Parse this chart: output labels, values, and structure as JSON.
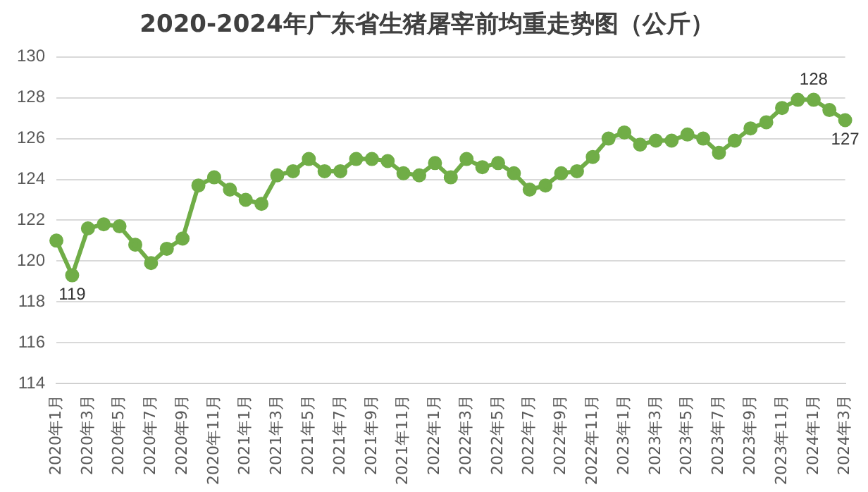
{
  "chart_data": {
    "type": "line",
    "title": "2020-2024年广东省生猪屠宰前均重走势图（公斤）",
    "categories": [
      "2020年1月",
      null,
      "2020年3月",
      null,
      "2020年5月",
      null,
      "2020年7月",
      null,
      "2020年9月",
      null,
      "2020年11月",
      null,
      "2021年1月",
      null,
      "2021年3月",
      null,
      "2021年5月",
      null,
      "2021年7月",
      null,
      "2021年9月",
      null,
      "2021年11月",
      null,
      "2022年1月",
      null,
      "2022年3月",
      null,
      "2022年5月",
      null,
      "2022年7月",
      null,
      "2022年9月",
      null,
      "2022年11月",
      null,
      "2023年1月",
      null,
      "2023年3月",
      null,
      "2023年5月",
      null,
      "2023年7月",
      null,
      "2023年9月",
      null,
      "2023年11月",
      null,
      "2024年1月",
      null,
      "2024年3月"
    ],
    "series": [
      {
        "color": "#70ad47",
        "values": [
          121.0,
          119.3,
          121.6,
          121.8,
          121.7,
          120.8,
          119.9,
          120.6,
          121.1,
          123.7,
          124.1,
          123.5,
          123.0,
          122.8,
          124.2,
          124.4,
          125.0,
          124.4,
          124.4,
          125.0,
          125.0,
          124.9,
          124.3,
          124.2,
          124.8,
          124.1,
          125.0,
          124.6,
          124.8,
          124.3,
          123.5,
          123.7,
          124.3,
          124.4,
          125.1,
          126.0,
          126.3,
          125.7,
          125.9,
          125.9,
          126.2,
          126.0,
          125.3,
          125.9,
          126.5,
          126.8,
          127.5,
          127.9,
          127.9,
          127.4,
          126.9
        ],
        "value_labels": [
          null,
          "119",
          null,
          null,
          null,
          null,
          null,
          null,
          null,
          null,
          null,
          null,
          null,
          null,
          null,
          null,
          null,
          null,
          null,
          null,
          null,
          null,
          null,
          null,
          null,
          null,
          null,
          null,
          null,
          null,
          null,
          null,
          null,
          null,
          null,
          null,
          null,
          null,
          null,
          null,
          null,
          null,
          null,
          null,
          null,
          null,
          null,
          null,
          "128",
          null,
          "127"
        ]
      }
    ],
    "ylim": [
      114,
      130
    ],
    "yticks": [
      114,
      116,
      118,
      120,
      122,
      124,
      126,
      128,
      130
    ],
    "grid": "y",
    "marker": "circle",
    "line_style": "solid",
    "legend": false
  }
}
